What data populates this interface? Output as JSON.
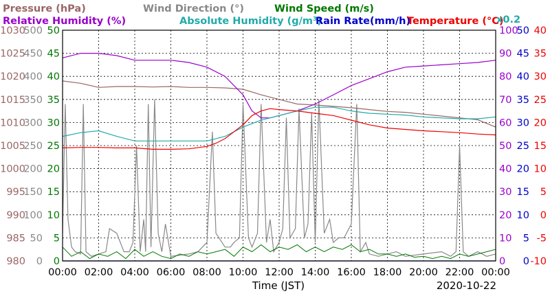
{
  "chart_data": {
    "type": "line",
    "date": "2020-10-22",
    "xlabel": "Time (JST)",
    "x_ticks": [
      "00:00",
      "02:00",
      "04:00",
      "06:00",
      "08:00",
      "10:00",
      "12:00",
      "14:00",
      "16:00",
      "18:00",
      "20:00",
      "22:00",
      "00:00"
    ],
    "xlim": [
      0,
      24
    ],
    "grid": true,
    "legend": [
      {
        "label": "Pressure (hPa)",
        "color": "#996666"
      },
      {
        "label": "Wind Direction (°)",
        "color": "#888888"
      },
      {
        "label": "Wind Speed (m/s)",
        "color": "#007700"
      },
      {
        "label": "Relative Humidity (%)",
        "color": "#9900cc"
      },
      {
        "label": "Absolute Humidity (g/m³)",
        "color": "#22aaaa"
      },
      {
        "label": "Rain Rate(mm/h)",
        "color": "#0000cc"
      },
      {
        "label": "Temperature (°C)",
        "color": "#ee0000"
      }
    ],
    "abs_humidity_scale_note": "x0.2",
    "axes": {
      "pressure": {
        "range": [
          980,
          1030
        ],
        "ticks": [
          "1030",
          "1025",
          "1020",
          "1015",
          "1010",
          "1005",
          "1000",
          "995",
          "990",
          "985",
          "980"
        ],
        "color": "#996666"
      },
      "wind_direction": {
        "range": [
          0,
          500
        ],
        "ticks": [
          "500",
          "450",
          "400",
          "350",
          "300",
          "250",
          "200",
          "150",
          "100",
          "50",
          "0"
        ],
        "color": "#888888"
      },
      "wind_speed": {
        "range": [
          0,
          50
        ],
        "ticks": [
          "50",
          "45",
          "40",
          "35",
          "30",
          "25",
          "20",
          "15",
          "10",
          "5",
          "0"
        ],
        "color": "#007700"
      },
      "humidity": {
        "range": [
          0,
          100
        ],
        "ticks": [
          "100",
          "90",
          "80",
          "70",
          "60",
          "50",
          "40",
          "30",
          "20",
          "10",
          "0"
        ],
        "color": "#9900cc"
      },
      "rain_rate": {
        "range": [
          0,
          50
        ],
        "ticks": [
          "50",
          "45",
          "40",
          "35",
          "30",
          "25",
          "20",
          "15",
          "10",
          "5",
          "0"
        ],
        "color": "#0000cc"
      },
      "temperature": {
        "range": [
          -10,
          40
        ],
        "ticks": [
          "40",
          "35",
          "30",
          "25",
          "20",
          "15",
          "10",
          "5",
          "0",
          "-5",
          "-10"
        ],
        "color": "#ee0000"
      }
    },
    "series": [
      {
        "name": "Pressure (hPa)",
        "axis": "pressure",
        "color": "#996666",
        "x": [
          0,
          1,
          2,
          3,
          4,
          5,
          6,
          7,
          8,
          9,
          10,
          11,
          12,
          13,
          14,
          15,
          16,
          17,
          18,
          19,
          20,
          21,
          22,
          23,
          24
        ],
        "y": [
          1019,
          1018.5,
          1017.6,
          1017.8,
          1017.8,
          1017.7,
          1017.8,
          1017.6,
          1017.6,
          1017.5,
          1017.2,
          1016,
          1015,
          1014,
          1013.8,
          1013.5,
          1013.2,
          1012.8,
          1012.4,
          1012.2,
          1011.8,
          1011.4,
          1011,
          1010.6,
          1009
        ]
      },
      {
        "name": "Relative Humidity (%)",
        "axis": "humidity",
        "color": "#9900cc",
        "x": [
          0,
          1,
          2,
          3,
          4,
          5,
          6,
          7,
          8,
          9,
          10,
          10.5,
          11,
          11.5,
          12,
          13,
          14,
          15,
          16,
          17,
          18,
          19,
          20,
          21,
          22,
          23,
          24
        ],
        "y": [
          88,
          90,
          90,
          89,
          87,
          87,
          87,
          86,
          84,
          80,
          72,
          65,
          62,
          62,
          63,
          65,
          68,
          72,
          76,
          79,
          82,
          84,
          84.5,
          85,
          85.5,
          86,
          87
        ]
      },
      {
        "name": "Absolute Humidity (g/m³)",
        "axis": "wind_direction",
        "color": "#22aaaa",
        "x": [
          0,
          1,
          2,
          3,
          4,
          5,
          6,
          7,
          8,
          9,
          10,
          11,
          12,
          13,
          14,
          15,
          16,
          17,
          18,
          19,
          20,
          21,
          22,
          23,
          24
        ],
        "y": [
          270,
          278,
          282,
          270,
          260,
          260,
          260,
          260,
          260,
          270,
          290,
          305,
          315,
          325,
          333,
          333,
          325,
          320,
          318,
          316,
          312,
          310,
          308,
          308,
          312
        ]
      },
      {
        "name": "Temperature (°C)",
        "axis": "temperature",
        "color": "#ee0000",
        "x": [
          0,
          1,
          2,
          3,
          4,
          5,
          6,
          7,
          8,
          8.5,
          9,
          10,
          10.5,
          11,
          11.5,
          12,
          13,
          14,
          15,
          16,
          17,
          18,
          19,
          20,
          21,
          22,
          23,
          24
        ],
        "y": [
          14.5,
          14.6,
          14.6,
          14.5,
          14.5,
          14.2,
          14.2,
          14.3,
          14.8,
          15.5,
          16.5,
          19.5,
          21.5,
          22.5,
          23,
          22.8,
          22.5,
          22,
          21.5,
          20.5,
          19.5,
          18.8,
          18.5,
          18.2,
          18,
          17.8,
          17.5,
          17.3
        ]
      },
      {
        "name": "Rain Rate(mm/h)",
        "axis": "rain_rate",
        "color": "#0000cc",
        "x": [
          0,
          24
        ],
        "y": [
          0,
          0
        ]
      },
      {
        "name": "Wind Direction (°)",
        "axis": "wind_direction",
        "color": "#888888",
        "x": [
          0,
          0.15,
          0.3,
          0.5,
          0.7,
          1,
          1.15,
          1.3,
          1.6,
          2,
          2.4,
          2.6,
          3,
          3.4,
          3.7,
          3.9,
          4.1,
          4.3,
          4.5,
          4.6,
          4.75,
          4.9,
          5.1,
          5.3,
          5.5,
          5.7,
          6,
          7,
          7.5,
          8,
          8.3,
          8.5,
          9,
          9.3,
          9.5,
          9.8,
          10,
          10.3,
          10.5,
          10.8,
          11,
          11.3,
          11.5,
          11.7,
          12,
          12.2,
          12.4,
          12.6,
          12.9,
          13.1,
          13.4,
          13.6,
          13.8,
          14,
          14.2,
          14.5,
          14.8,
          15,
          15.3,
          15.6,
          16,
          16.3,
          16.5,
          16.8,
          17,
          17.5,
          18,
          18.5,
          19,
          20,
          21,
          21.5,
          21.8,
          22,
          22.2,
          22.5,
          23,
          23.5,
          24
        ],
        "y": [
          60,
          340,
          90,
          30,
          20,
          15,
          340,
          20,
          10,
          15,
          20,
          70,
          60,
          20,
          20,
          40,
          250,
          20,
          90,
          20,
          340,
          30,
          350,
          60,
          20,
          80,
          10,
          15,
          20,
          40,
          280,
          60,
          30,
          30,
          40,
          50,
          340,
          50,
          30,
          60,
          340,
          40,
          90,
          20,
          40,
          70,
          310,
          50,
          70,
          330,
          50,
          80,
          320,
          40,
          350,
          60,
          90,
          40,
          50,
          50,
          80,
          340,
          20,
          40,
          15,
          10,
          15,
          20,
          10,
          15,
          20,
          10,
          20,
          250,
          20,
          10,
          20,
          10,
          15
        ]
      },
      {
        "name": "Wind Speed (m/s)",
        "axis": "wind_speed",
        "color": "#007700",
        "x": [
          0,
          0.5,
          1,
          1.5,
          2,
          2.5,
          3,
          3.5,
          4,
          4.5,
          5,
          5.5,
          6,
          6.5,
          7,
          7.5,
          8,
          8.5,
          9,
          9.5,
          10,
          10.5,
          11,
          11.5,
          12,
          12.5,
          13,
          13.5,
          14,
          14.5,
          15,
          15.5,
          16,
          16.5,
          17,
          17.5,
          18,
          18.5,
          19,
          19.5,
          20,
          20.5,
          21,
          21.5,
          22,
          22.5,
          23,
          23.5,
          24
        ],
        "y": [
          3,
          1,
          2,
          0.5,
          1.5,
          1,
          2,
          0.5,
          2.5,
          1,
          2,
          1,
          0.5,
          1.5,
          1,
          2,
          1.5,
          2,
          2.5,
          1,
          3,
          2,
          3.5,
          2,
          3,
          2.5,
          3.5,
          2,
          3,
          2,
          3,
          2.5,
          3.5,
          2,
          2.5,
          1.5,
          1.5,
          1,
          1.5,
          0.8,
          1,
          0.5,
          1,
          0.5,
          1.5,
          1,
          1.5,
          2,
          2.5
        ]
      }
    ]
  }
}
